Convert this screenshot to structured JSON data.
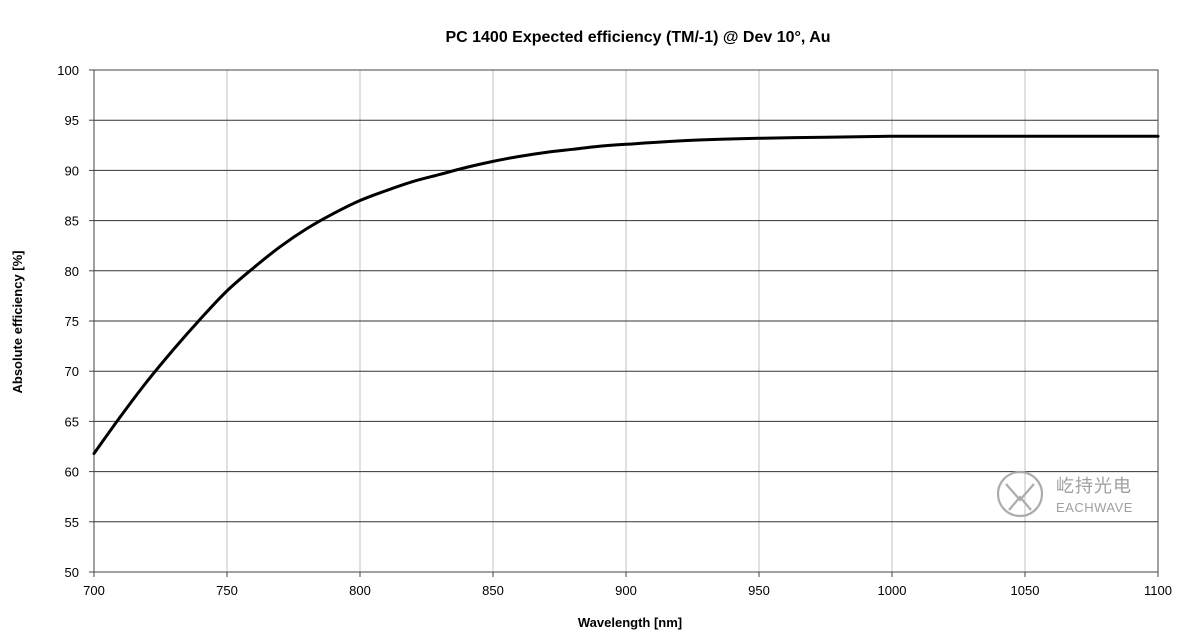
{
  "chart_data": {
    "type": "line",
    "title": "PC 1400 Expected efficiency (TM/-1) @ Dev 10°, Au",
    "xlabel": "Wavelength [nm]",
    "ylabel": "Absolute efficiency [%]",
    "xlim": [
      700,
      1100
    ],
    "ylim": [
      50,
      100
    ],
    "x_ticks": [
      700,
      750,
      800,
      850,
      900,
      950,
      1000,
      1050,
      1100
    ],
    "y_ticks": [
      50,
      55,
      60,
      65,
      70,
      75,
      80,
      85,
      90,
      95,
      100
    ],
    "grid": true,
    "series": [
      {
        "name": "TM/-1 efficiency",
        "x": [
          700,
          710,
          720,
          730,
          740,
          750,
          760,
          770,
          780,
          790,
          800,
          810,
          820,
          830,
          840,
          850,
          860,
          870,
          880,
          890,
          900,
          925,
          950,
          975,
          1000,
          1025,
          1050,
          1075,
          1100
        ],
        "y": [
          61.8,
          65.5,
          69.0,
          72.2,
          75.2,
          78.0,
          80.3,
          82.4,
          84.2,
          85.7,
          87.0,
          88.0,
          88.9,
          89.6,
          90.3,
          90.9,
          91.4,
          91.8,
          92.1,
          92.4,
          92.6,
          93.0,
          93.2,
          93.3,
          93.4,
          93.4,
          93.4,
          93.4,
          93.4
        ]
      }
    ]
  },
  "watermark": {
    "brand_cn": "屹持光电",
    "brand_en": "EACHWAVE",
    "icon": "eachwave-logo-icon"
  },
  "colors": {
    "curve": "#000000",
    "h_grid": "#333333",
    "v_grid": "#c0c0c0",
    "watermark": "#9a9a9a"
  }
}
